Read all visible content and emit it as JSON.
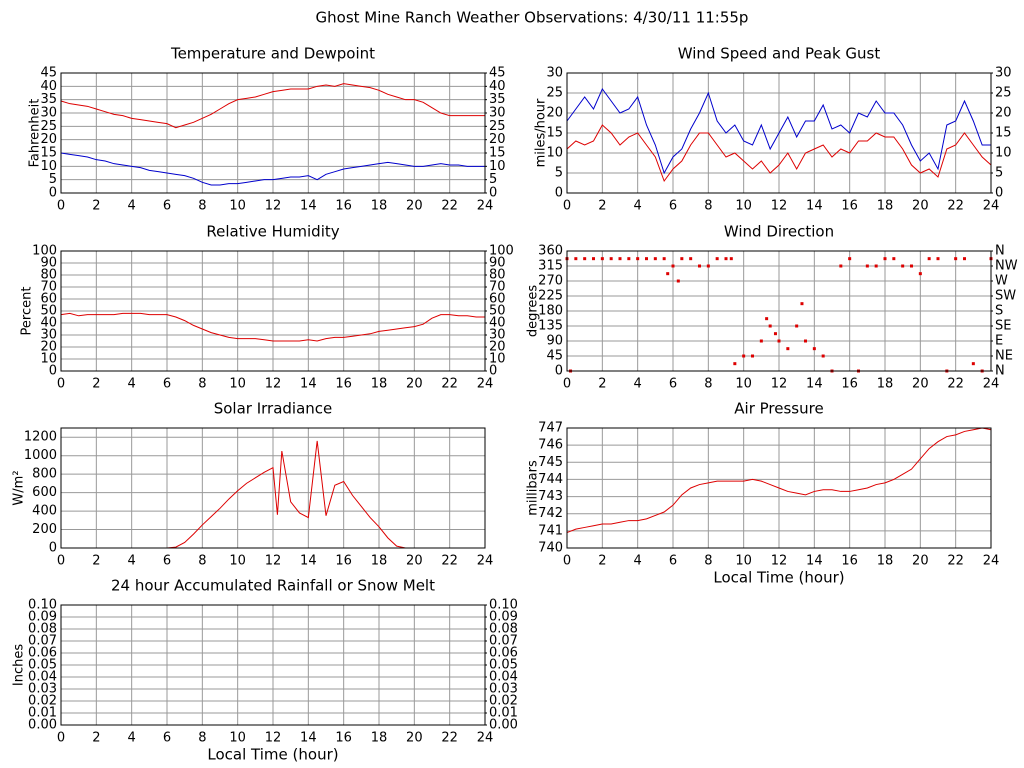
{
  "title": "Ghost Mine Ranch Weather Observations: 4/30/11 11:55p",
  "chart_data": [
    {
      "type": "line",
      "title": "Temperature and Dewpoint",
      "ylabel": "Fahrenheit",
      "grid": true,
      "x": [
        0,
        0.5,
        1,
        1.5,
        2,
        2.5,
        3,
        3.5,
        4,
        4.5,
        5,
        5.5,
        6,
        6.5,
        7,
        7.5,
        8,
        8.5,
        9,
        9.5,
        10,
        10.5,
        11,
        11.5,
        12,
        12.5,
        13,
        13.5,
        14,
        14.5,
        15,
        15.5,
        16,
        16.5,
        17,
        17.5,
        18,
        18.5,
        19,
        19.5,
        20,
        20.5,
        21,
        21.5,
        22,
        22.5,
        23,
        23.5,
        24
      ],
      "series": [
        {
          "name": "Temperature",
          "color": "#dd0000",
          "values": [
            34.5,
            33.5,
            33,
            32.5,
            31.5,
            30.5,
            29.5,
            29,
            28,
            27.5,
            27,
            26.5,
            26,
            24.5,
            25.5,
            26.5,
            28,
            29.5,
            31.5,
            33.5,
            35,
            35.5,
            36,
            37,
            38,
            38.5,
            39,
            39,
            39,
            40,
            40.5,
            40,
            41,
            40.5,
            40,
            39.5,
            38.5,
            37,
            36,
            35,
            35,
            34,
            32,
            30,
            29,
            29,
            29,
            29,
            29
          ]
        },
        {
          "name": "Dewpoint",
          "color": "#0000cc",
          "values": [
            15,
            14.5,
            14,
            13.5,
            12.5,
            12,
            11,
            10.5,
            10,
            9.5,
            8.5,
            8,
            7.5,
            7,
            6.5,
            5.5,
            4,
            3,
            3,
            3.5,
            3.5,
            4,
            4.5,
            5,
            5,
            5.5,
            6,
            6,
            6.5,
            5,
            7,
            8,
            9,
            9.5,
            10,
            10.5,
            11,
            11.5,
            11,
            10.5,
            10,
            10,
            10.5,
            11,
            10.5,
            10.5,
            10,
            10,
            10
          ]
        }
      ],
      "xlim": [
        0,
        24
      ],
      "xticks": [
        0,
        2,
        4,
        6,
        8,
        10,
        12,
        14,
        16,
        18,
        20,
        22,
        24
      ],
      "ylim": [
        0,
        45
      ],
      "yticks": [
        0,
        5,
        10,
        15,
        20,
        25,
        30,
        35,
        40,
        45
      ],
      "y2lim": [
        0,
        45
      ],
      "y2ticks": [
        0,
        5,
        10,
        15,
        20,
        25,
        30,
        35,
        40,
        45
      ]
    },
    {
      "type": "line",
      "title": "Wind Speed and Peak Gust",
      "ylabel": "miles/hour",
      "grid": true,
      "x": [
        0,
        0.5,
        1,
        1.5,
        2,
        2.5,
        3,
        3.5,
        4,
        4.5,
        5,
        5.5,
        6,
        6.5,
        7,
        7.5,
        8,
        8.5,
        9,
        9.5,
        10,
        10.5,
        11,
        11.5,
        12,
        12.5,
        13,
        13.5,
        14,
        14.5,
        15,
        15.5,
        16,
        16.5,
        17,
        17.5,
        18,
        18.5,
        19,
        19.5,
        20,
        20.5,
        21,
        21.5,
        22,
        22.5,
        23,
        23.5,
        24
      ],
      "series": [
        {
          "name": "Peak Gust",
          "color": "#0000cc",
          "values": [
            18,
            21,
            24,
            21,
            26,
            23,
            20,
            21,
            24,
            17,
            12,
            5,
            9,
            11,
            16,
            20,
            25,
            18,
            15,
            17,
            13,
            12,
            17,
            11,
            15,
            19,
            14,
            18,
            18,
            22,
            16,
            17,
            15,
            20,
            19,
            23,
            20,
            20,
            17,
            12,
            8,
            10,
            6,
            17,
            18,
            23,
            18,
            12,
            12
          ]
        },
        {
          "name": "Wind Speed",
          "color": "#dd0000",
          "values": [
            11,
            13,
            12,
            13,
            17,
            15,
            12,
            14,
            15,
            12,
            9,
            3,
            6,
            8,
            12,
            15,
            15,
            12,
            9,
            10,
            8,
            6,
            8,
            5,
            7,
            10,
            6,
            10,
            11,
            12,
            9,
            11,
            10,
            13,
            13,
            15,
            14,
            14,
            11,
            7,
            5,
            6,
            4,
            11,
            12,
            15,
            12,
            9,
            7
          ]
        }
      ],
      "xlim": [
        0,
        24
      ],
      "xticks": [
        0,
        2,
        4,
        6,
        8,
        10,
        12,
        14,
        16,
        18,
        20,
        22,
        24
      ],
      "ylim": [
        0,
        30
      ],
      "yticks": [
        0,
        5,
        10,
        15,
        20,
        25,
        30
      ],
      "y2lim": [
        0,
        30
      ],
      "y2ticks": [
        0,
        5,
        10,
        15,
        20,
        25,
        30
      ]
    },
    {
      "type": "line",
      "title": "Relative Humidity",
      "ylabel": "Percent",
      "grid": true,
      "x": [
        0,
        0.5,
        1,
        1.5,
        2,
        2.5,
        3,
        3.5,
        4,
        4.5,
        5,
        5.5,
        6,
        6.5,
        7,
        7.5,
        8,
        8.5,
        9,
        9.5,
        10,
        10.5,
        11,
        11.5,
        12,
        12.5,
        13,
        13.5,
        14,
        14.5,
        15,
        15.5,
        16,
        16.5,
        17,
        17.5,
        18,
        18.5,
        19,
        19.5,
        20,
        20.5,
        21,
        21.5,
        22,
        22.5,
        23,
        23.5,
        24
      ],
      "series": [
        {
          "name": "Relative Humidity",
          "color": "#dd0000",
          "values": [
            47,
            48,
            46,
            47,
            47,
            47,
            47,
            48,
            48,
            48,
            47,
            47,
            47,
            45,
            42,
            38,
            35,
            32,
            30,
            28,
            27,
            27,
            27,
            26,
            25,
            25,
            25,
            25,
            26,
            25,
            27,
            28,
            28,
            29,
            30,
            31,
            33,
            34,
            35,
            36,
            37,
            39,
            44,
            47,
            47,
            46,
            46,
            45,
            45
          ]
        }
      ],
      "xlim": [
        0,
        24
      ],
      "xticks": [
        0,
        2,
        4,
        6,
        8,
        10,
        12,
        14,
        16,
        18,
        20,
        22,
        24
      ],
      "ylim": [
        0,
        100
      ],
      "yticks": [
        0,
        10,
        20,
        30,
        40,
        50,
        60,
        70,
        80,
        90,
        100
      ],
      "y2lim": [
        0,
        100
      ],
      "y2ticks": [
        0,
        10,
        20,
        30,
        40,
        50,
        60,
        70,
        80,
        90,
        100
      ]
    },
    {
      "type": "scatter",
      "title": "Wind Direction",
      "ylabel": "degrees",
      "grid": true,
      "x": [
        0,
        0.2,
        0.5,
        1,
        1.5,
        2,
        2.5,
        3,
        3.5,
        4,
        4.5,
        5,
        5.5,
        5.7,
        6,
        6.3,
        6.5,
        7,
        7.5,
        8,
        8.5,
        9,
        9.3,
        9.5,
        10,
        10.5,
        11,
        11.3,
        11.5,
        11.8,
        12,
        12.5,
        13,
        13.3,
        13.5,
        14,
        14.5,
        15,
        15.5,
        16,
        16.5,
        17,
        17.5,
        18,
        18.5,
        19,
        19.5,
        20,
        20.5,
        21,
        21.5,
        22,
        22.5,
        23,
        23.5,
        24
      ],
      "series": [
        {
          "name": "Wind Direction",
          "color": "#dd0000",
          "values": [
            337,
            0,
            337,
            337,
            337,
            337,
            337,
            337,
            337,
            337,
            337,
            337,
            337,
            292,
            315,
            270,
            337,
            337,
            315,
            315,
            337,
            337,
            337,
            22,
            45,
            45,
            90,
            157,
            135,
            112,
            90,
            67,
            135,
            202,
            90,
            67,
            45,
            0,
            315,
            337,
            0,
            315,
            315,
            337,
            337,
            315,
            315,
            292,
            337,
            337,
            0,
            337,
            337,
            22,
            0,
            337
          ]
        }
      ],
      "xlim": [
        0,
        24
      ],
      "xticks": [
        0,
        2,
        4,
        6,
        8,
        10,
        12,
        14,
        16,
        18,
        20,
        22,
        24
      ],
      "ylim": [
        0,
        360
      ],
      "yticks": [
        0,
        45,
        90,
        135,
        180,
        225,
        270,
        315,
        360
      ],
      "y2lim": [
        0,
        360
      ],
      "y2ticks": [
        {
          "value": 0,
          "label": "N"
        },
        {
          "value": 45,
          "label": "NE"
        },
        {
          "value": 90,
          "label": "E"
        },
        {
          "value": 135,
          "label": "SE"
        },
        {
          "value": 180,
          "label": "S"
        },
        {
          "value": 225,
          "label": "SW"
        },
        {
          "value": 270,
          "label": "W"
        },
        {
          "value": 315,
          "label": "NW"
        },
        {
          "value": 360,
          "label": "N"
        }
      ]
    },
    {
      "type": "line",
      "title": "Solar Irradiance",
      "ylabel": "W/m²",
      "grid": true,
      "x": [
        0,
        0.5,
        1,
        1.5,
        2,
        2.5,
        3,
        3.5,
        4,
        4.5,
        5,
        5.5,
        6,
        6.5,
        7,
        7.5,
        8,
        8.5,
        9,
        9.5,
        10,
        10.5,
        11,
        11.5,
        12,
        12.25,
        12.5,
        13,
        13.5,
        14,
        14.5,
        15,
        15.5,
        16,
        16.5,
        17,
        17.5,
        18,
        18.5,
        19,
        19.5,
        20,
        20.5,
        21,
        21.5,
        22,
        22.5,
        23,
        23.5,
        24
      ],
      "series": [
        {
          "name": "Solar Irradiance",
          "color": "#dd0000",
          "values": [
            0,
            0,
            0,
            0,
            0,
            0,
            0,
            0,
            0,
            0,
            0,
            0,
            0,
            10,
            60,
            150,
            250,
            340,
            430,
            530,
            620,
            700,
            760,
            820,
            870,
            360,
            1050,
            500,
            380,
            330,
            1160,
            350,
            680,
            720,
            570,
            450,
            330,
            230,
            110,
            20,
            0,
            0,
            0,
            0,
            0,
            0,
            0,
            0,
            0,
            0
          ]
        }
      ],
      "xlim": [
        0,
        24
      ],
      "xticks": [
        0,
        2,
        4,
        6,
        8,
        10,
        12,
        14,
        16,
        18,
        20,
        22,
        24
      ],
      "ylim": [
        0,
        1300
      ],
      "yticks": [
        0,
        200,
        400,
        600,
        800,
        1000,
        1200
      ]
    },
    {
      "type": "line",
      "title": "Air Pressure",
      "ylabel": "millibars",
      "xlabel": "Local Time (hour)",
      "grid": true,
      "x": [
        0,
        0.5,
        1,
        1.5,
        2,
        2.5,
        3,
        3.5,
        4,
        4.5,
        5,
        5.5,
        6,
        6.5,
        7,
        7.5,
        8,
        8.5,
        9,
        9.5,
        10,
        10.5,
        11,
        11.5,
        12,
        12.5,
        13,
        13.5,
        14,
        14.5,
        15,
        15.5,
        16,
        16.5,
        17,
        17.5,
        18,
        18.5,
        19,
        19.5,
        20,
        20.5,
        21,
        21.5,
        22,
        22.5,
        23,
        23.5,
        24
      ],
      "series": [
        {
          "name": "Air Pressure",
          "color": "#dd0000",
          "values": [
            740.9,
            741.1,
            741.2,
            741.3,
            741.4,
            741.4,
            741.5,
            741.6,
            741.6,
            741.7,
            741.9,
            742.1,
            742.5,
            743.1,
            743.5,
            743.7,
            743.8,
            743.9,
            743.9,
            743.9,
            743.9,
            744,
            743.9,
            743.7,
            743.5,
            743.3,
            743.2,
            743.1,
            743.3,
            743.4,
            743.4,
            743.3,
            743.3,
            743.4,
            743.5,
            743.7,
            743.8,
            744,
            744.3,
            744.6,
            745.2,
            745.8,
            746.2,
            746.5,
            746.6,
            746.8,
            746.9,
            747,
            746.9
          ]
        }
      ],
      "xlim": [
        0,
        24
      ],
      "xticks": [
        0,
        2,
        4,
        6,
        8,
        10,
        12,
        14,
        16,
        18,
        20,
        22,
        24
      ],
      "ylim": [
        740,
        747
      ],
      "yticks": [
        740,
        741,
        742,
        743,
        744,
        745,
        746,
        747
      ]
    },
    {
      "type": "line",
      "title": "24 hour Accumulated Rainfall or Snow Melt",
      "ylabel": "Inches",
      "xlabel": "Local Time (hour)",
      "grid": true,
      "x": [
        0,
        1,
        2,
        3,
        4,
        5,
        6,
        7,
        8,
        9,
        10,
        11,
        12,
        13,
        14,
        15,
        16,
        17,
        18,
        19,
        20,
        21,
        22,
        23,
        24
      ],
      "series": [
        {
          "name": "Rainfall",
          "color": "#dd0000",
          "values": [
            0,
            0,
            0,
            0,
            0,
            0,
            0,
            0,
            0,
            0,
            0,
            0,
            0,
            0,
            0,
            0,
            0,
            0,
            0,
            0,
            0,
            0,
            0,
            0,
            0
          ]
        }
      ],
      "xlim": [
        0,
        24
      ],
      "xticks": [
        0,
        2,
        4,
        6,
        8,
        10,
        12,
        14,
        16,
        18,
        20,
        22,
        24
      ],
      "ylim": [
        0,
        0.1
      ],
      "yticks": [
        {
          "value": 0,
          "label": "0.00"
        },
        {
          "value": 0.01,
          "label": "0.01"
        },
        {
          "value": 0.02,
          "label": "0.02"
        },
        {
          "value": 0.03,
          "label": "0.03"
        },
        {
          "value": 0.04,
          "label": "0.04"
        },
        {
          "value": 0.05,
          "label": "0.05"
        },
        {
          "value": 0.06,
          "label": "0.06"
        },
        {
          "value": 0.07,
          "label": "0.07"
        },
        {
          "value": 0.08,
          "label": "0.08"
        },
        {
          "value": 0.09,
          "label": "0.09"
        },
        {
          "value": 0.1,
          "label": "0.10"
        }
      ],
      "y2lim": [
        0,
        0.1
      ],
      "y2ticks": [
        {
          "value": 0,
          "label": "0.00"
        },
        {
          "value": 0.01,
          "label": "0.01"
        },
        {
          "value": 0.02,
          "label": "0.02"
        },
        {
          "value": 0.03,
          "label": "0.03"
        },
        {
          "value": 0.04,
          "label": "0.04"
        },
        {
          "value": 0.05,
          "label": "0.05"
        },
        {
          "value": 0.06,
          "label": "0.06"
        },
        {
          "value": 0.07,
          "label": "0.07"
        },
        {
          "value": 0.08,
          "label": "0.08"
        },
        {
          "value": 0.09,
          "label": "0.09"
        },
        {
          "value": 0.1,
          "label": "0.10"
        }
      ]
    }
  ]
}
